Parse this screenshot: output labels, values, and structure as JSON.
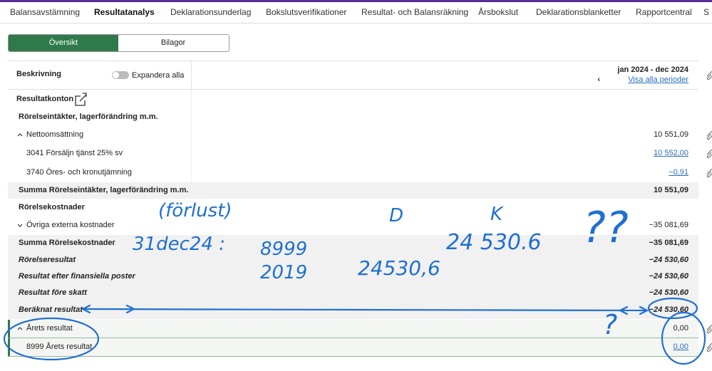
{
  "nav": {
    "tabs": [
      "Balansavstämning",
      "Resultatanalys",
      "Deklarationsunderlag",
      "Bokslutsverifikationer",
      "Resultat- och Balansräkning",
      "Årsbokslut",
      "Deklarationsblanketter",
      "Rapportcentral",
      "S"
    ]
  },
  "segments": [
    "Översikt",
    "Bilagor"
  ],
  "table": {
    "header": {
      "description": "Beskrivning",
      "toggle_label": "Expandera alla",
      "period": "jan 2024 - dec 2024",
      "link": "Visa alla perioder"
    },
    "rows": [
      {
        "label": "Resultatkonton"
      },
      {
        "label": "Rörelseintäkter, lagerförändring m.m."
      },
      {
        "label": "Nettoomsättning",
        "value": "10 551,09"
      },
      {
        "label": "3041 Försäljn tjänst 25% sv",
        "value": "10 552,00"
      },
      {
        "label": "3740 Öres- och kronutjämning",
        "value": "−0,91"
      },
      {
        "label": "Summa Rörelseintäkter, lagerförändring m.m.",
        "value": "10 551,09"
      },
      {
        "label": "Rörelsekostnader"
      },
      {
        "label": "Övriga externa kostnader",
        "value": "−35 081,69"
      },
      {
        "label": "Summa Rörelsekostnader",
        "value": "−35 081,69"
      },
      {
        "label": "Rörelseresultat",
        "value": "−24 530,60"
      },
      {
        "label": "Resultat efter finansiella poster",
        "value": "−24 530,60"
      },
      {
        "label": "Resultat före skatt",
        "value": "−24 530,60"
      },
      {
        "label": "Beräknat resultat",
        "value": "−24 530,60"
      },
      {
        "label": "Årets resultat",
        "value": "0,00"
      },
      {
        "label": "8999 Årets resultat",
        "value": "0,00"
      }
    ]
  },
  "annotations": [
    "(förlust)",
    "31dec24 :",
    "8999",
    "2019",
    "D",
    "K",
    "24 530.6",
    "24530,6",
    "??",
    "?"
  ]
}
